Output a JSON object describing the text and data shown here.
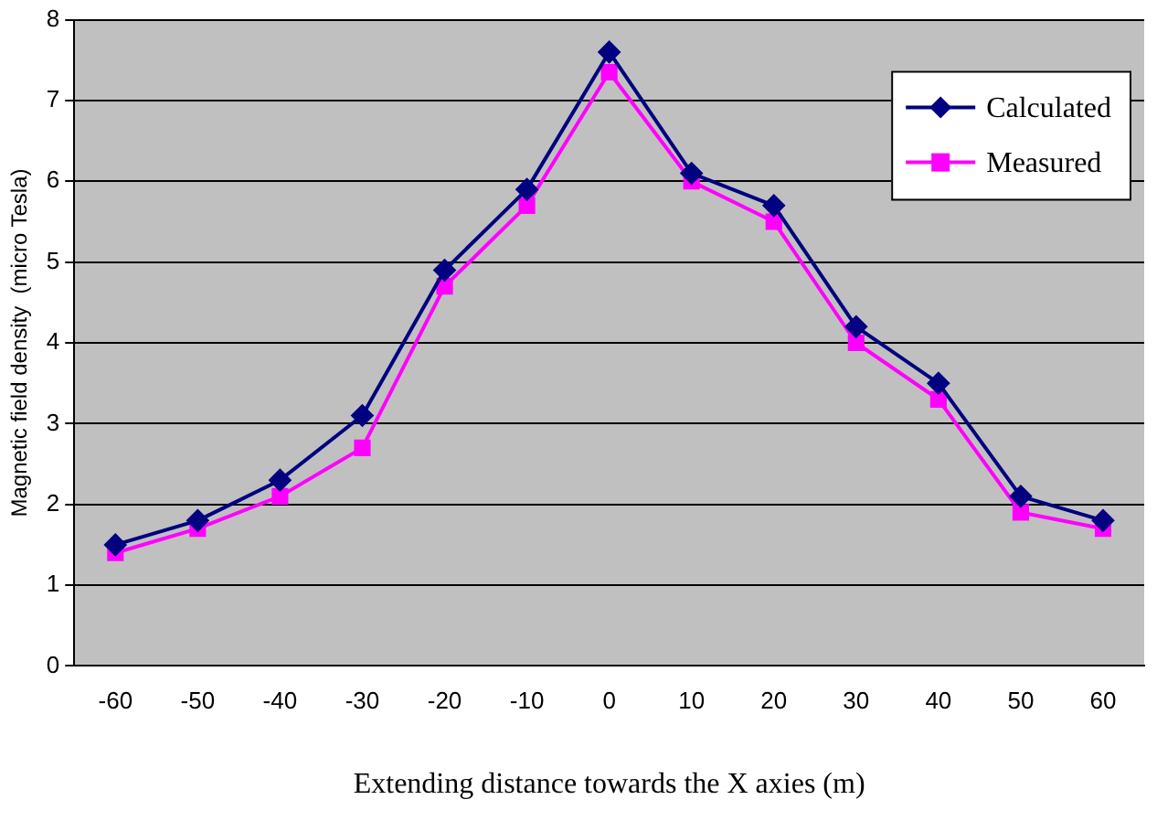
{
  "chart_data": {
    "type": "line",
    "xlabel": "Extending distance towards the X axies (m)",
    "ylabel": "Magnetic field density  (micro Tesla)",
    "categories": [
      "-60",
      "-50",
      "-40",
      "-30",
      "-20",
      "-10",
      "0",
      "10",
      "20",
      "30",
      "40",
      "50",
      "60"
    ],
    "series": [
      {
        "name": "Calculated",
        "color": "#000080",
        "marker": "diamond",
        "values": [
          1.5,
          1.8,
          2.3,
          3.1,
          4.9,
          5.9,
          7.6,
          6.1,
          5.7,
          4.2,
          3.5,
          2.1,
          1.8
        ]
      },
      {
        "name": "Measured",
        "color": "#ff00ff",
        "marker": "square",
        "values": [
          1.4,
          1.7,
          2.1,
          2.7,
          4.7,
          5.7,
          7.35,
          6.0,
          5.5,
          4.0,
          3.3,
          1.9,
          1.7
        ]
      }
    ],
    "ylim": [
      0,
      8
    ],
    "yticks": [
      0,
      1,
      2,
      3,
      4,
      5,
      6,
      7,
      8
    ],
    "grid": "y",
    "legend": "top right",
    "line_style": "solid"
  }
}
